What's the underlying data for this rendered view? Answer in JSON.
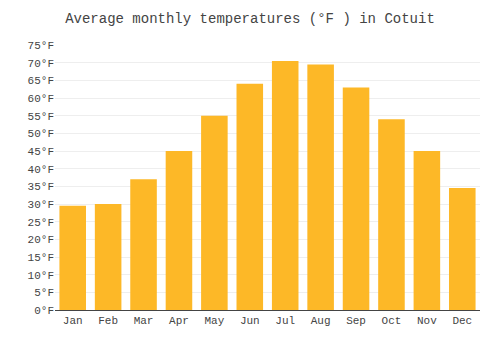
{
  "chart_data": {
    "type": "bar",
    "title": "Average monthly temperatures (°F ) in Cotuit",
    "categories": [
      "Jan",
      "Feb",
      "Mar",
      "Apr",
      "May",
      "Jun",
      "Jul",
      "Aug",
      "Sep",
      "Oct",
      "Nov",
      "Dec"
    ],
    "values": [
      29.5,
      30.0,
      37.0,
      45.0,
      55.0,
      64.0,
      70.5,
      69.5,
      63.0,
      54.0,
      45.0,
      34.5
    ],
    "color": "#FDB827",
    "ylim": [
      0,
      75
    ],
    "yticks": [
      {
        "value": 0,
        "label": "0°F"
      },
      {
        "value": 5,
        "label": "5°F"
      },
      {
        "value": 10,
        "label": "10°F"
      },
      {
        "value": 15,
        "label": "15°F"
      },
      {
        "value": 20,
        "label": "20°F"
      },
      {
        "value": 25,
        "label": "25°F"
      },
      {
        "value": 30,
        "label": "30°F"
      },
      {
        "value": 35,
        "label": "35°F"
      },
      {
        "value": 40,
        "label": "40°F"
      },
      {
        "value": 45,
        "label": "45°F"
      },
      {
        "value": 50,
        "label": "50°F"
      },
      {
        "value": 55,
        "label": "55°F"
      },
      {
        "value": 60,
        "label": "60°F"
      },
      {
        "value": 65,
        "label": "65°F"
      },
      {
        "value": 70,
        "label": "70°F"
      },
      {
        "value": 75,
        "label": "75°F"
      }
    ],
    "grid": true
  }
}
